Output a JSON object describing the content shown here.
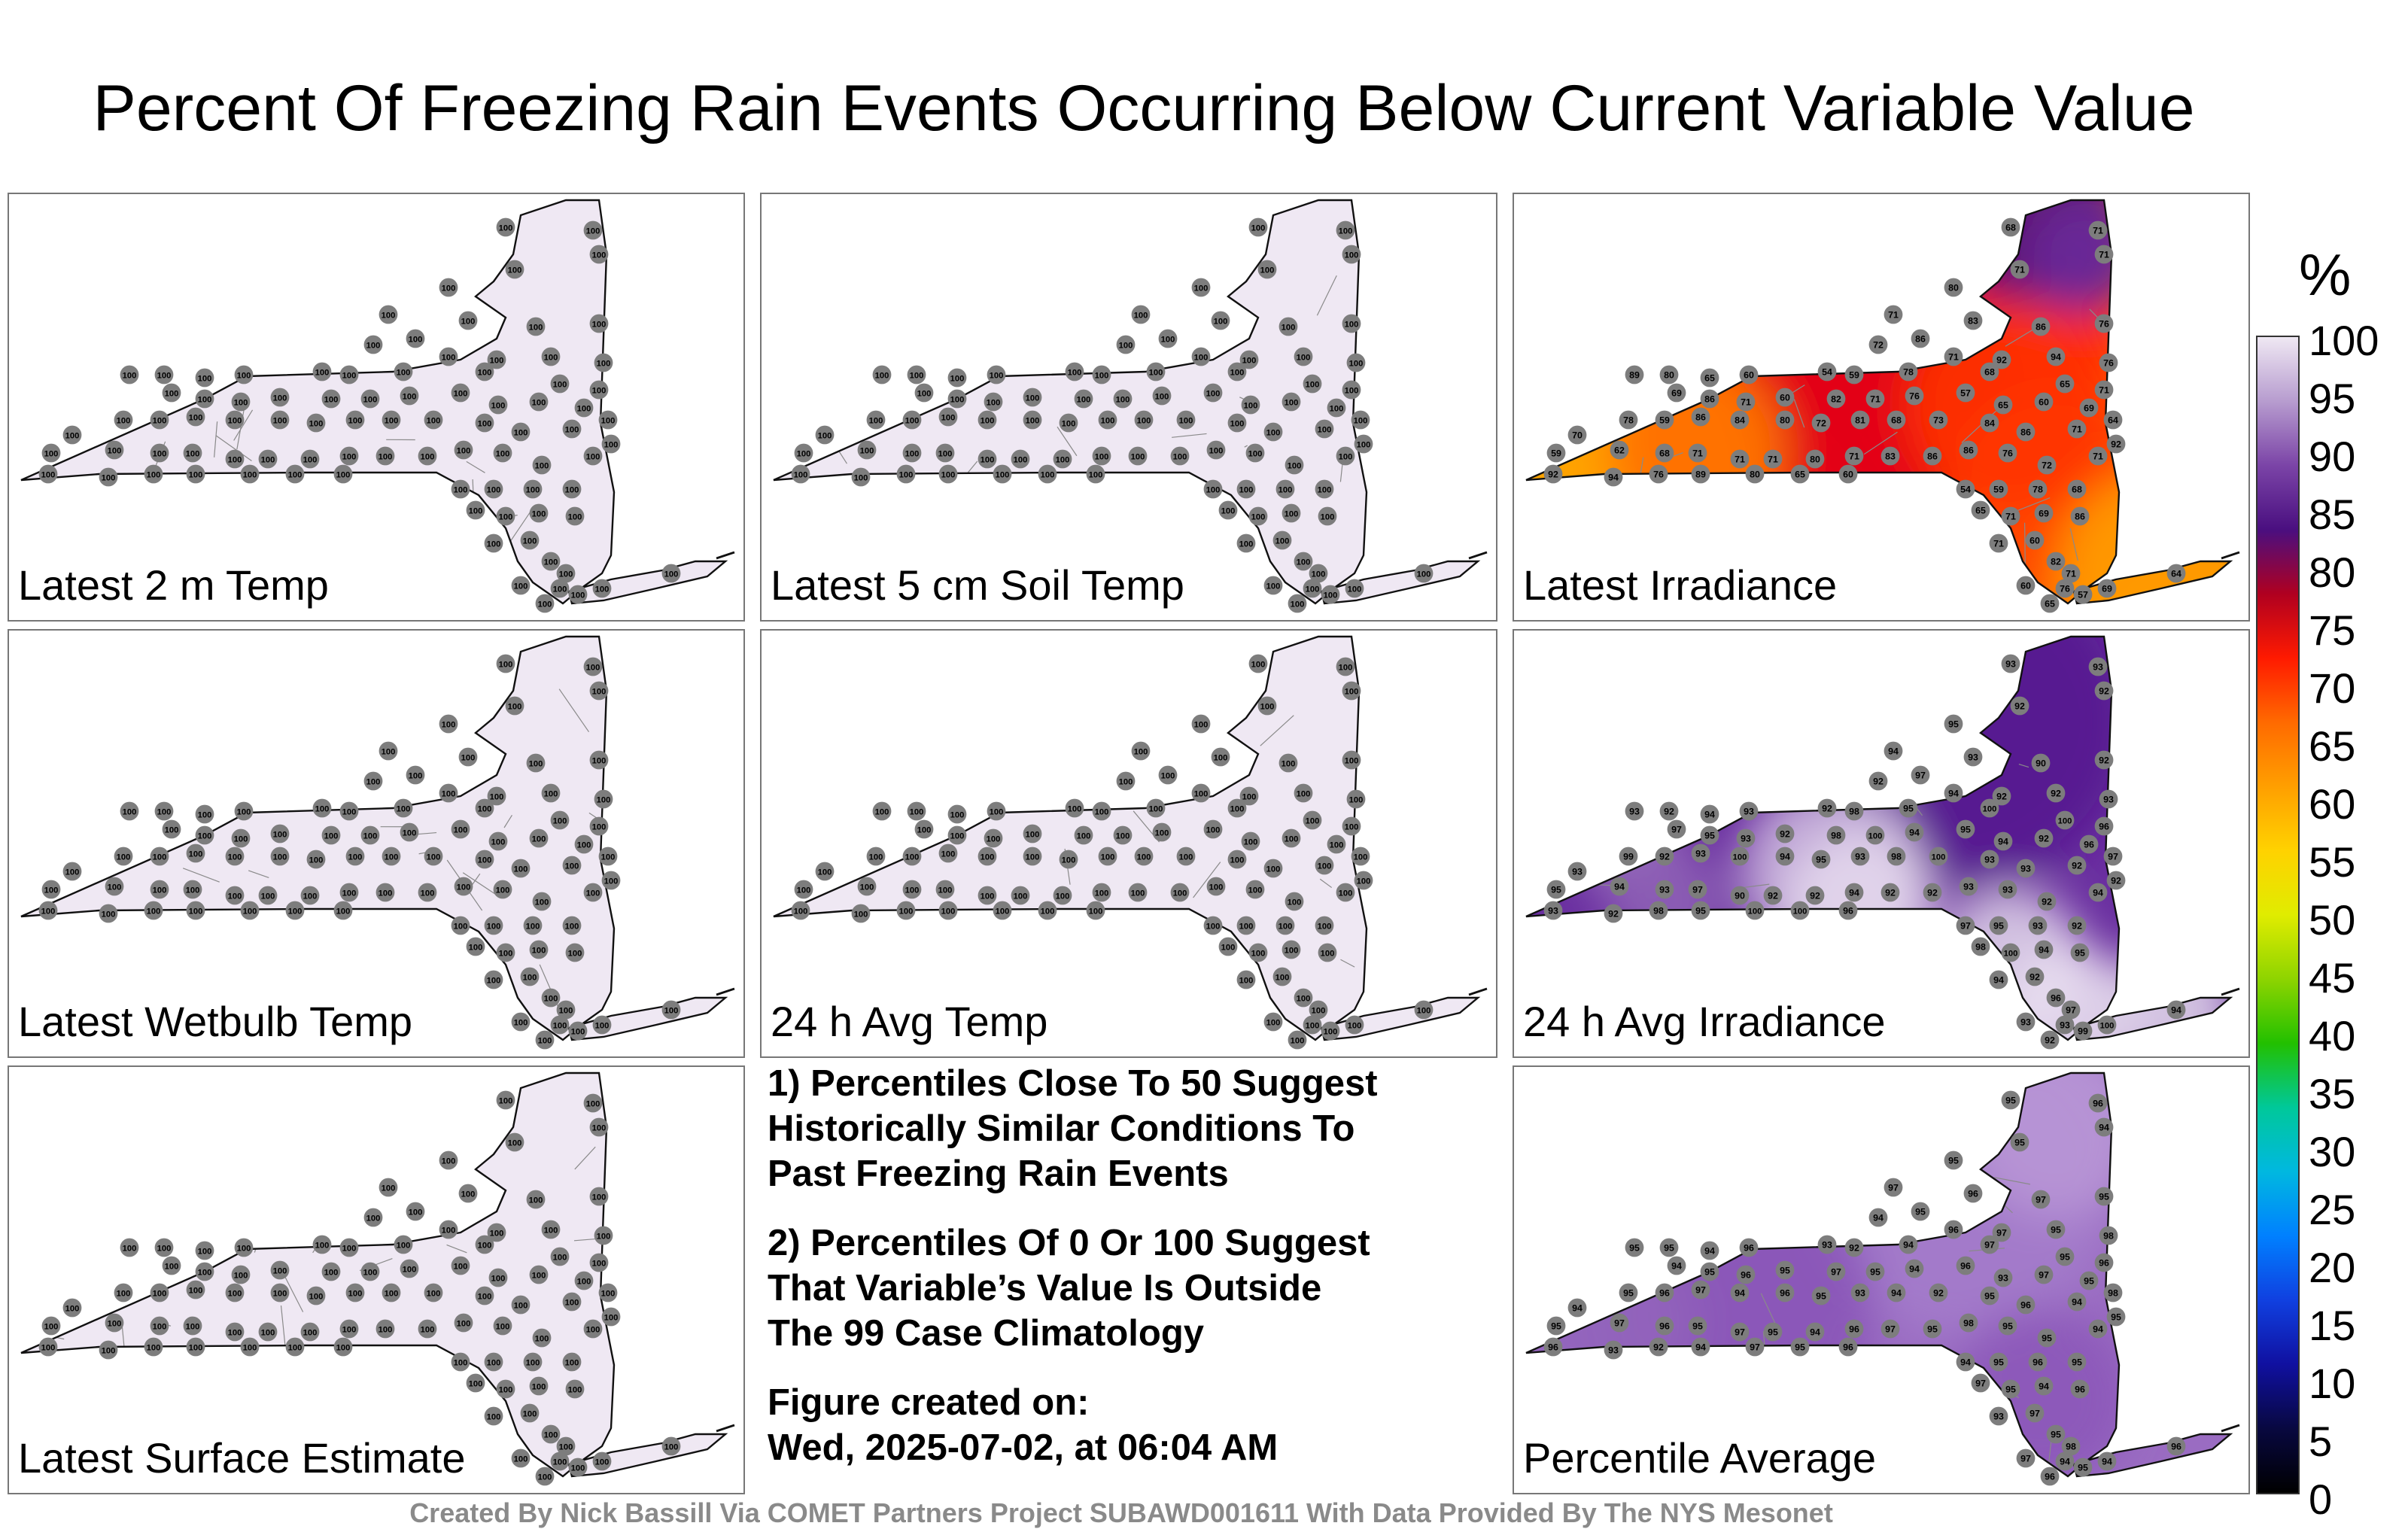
{
  "title": "Percent Of Freezing Rain Events Occurring Below Current Variable Value",
  "panels": [
    {
      "label": "Latest 2 m Temp",
      "fill": "uniform",
      "base_value": 100
    },
    {
      "label": "Latest 5 cm Soil Temp",
      "fill": "uniform",
      "base_value": 100
    },
    {
      "label": "Latest Irradiance",
      "fill": "irradiance",
      "values": [
        68,
        71,
        71,
        71,
        80,
        71,
        83,
        86,
        86,
        76,
        72,
        71,
        92,
        94,
        76,
        89,
        80,
        65,
        60,
        54,
        59,
        78,
        68,
        65,
        71,
        69,
        86,
        71,
        60,
        82,
        71,
        76,
        57,
        65,
        60,
        69,
        64,
        70,
        78,
        59,
        86,
        84,
        80,
        72,
        81,
        68,
        73,
        84,
        86,
        71,
        92,
        59,
        62
      ]
    },
    {
      "label": "Latest Wetbulb Temp",
      "fill": "uniform",
      "base_value": 100
    },
    {
      "label": "24 h Avg Temp",
      "fill": "uniform",
      "base_value": 100
    },
    {
      "label": "24 h Avg Irradiance",
      "fill": "purple_high",
      "values": [
        93,
        93,
        92,
        92,
        95,
        94,
        93,
        97,
        90,
        92,
        92,
        94,
        92,
        92,
        93,
        93,
        92,
        94,
        93,
        92,
        98,
        95,
        100,
        100,
        96,
        97,
        95,
        93,
        92,
        98,
        100,
        94,
        95,
        94,
        92,
        96,
        97,
        93,
        99,
        92,
        93,
        100,
        94,
        95,
        93,
        98,
        100
      ]
    },
    {
      "label": "Latest Surface Estimate",
      "fill": "uniform",
      "base_value": 100
    },
    {
      "label": "Percentile Average",
      "fill": "purple_mid",
      "values": [
        95,
        96,
        94,
        95,
        95,
        97,
        96,
        95,
        97,
        95,
        94,
        96,
        97,
        95,
        98,
        95,
        95,
        94,
        96,
        93,
        92,
        94,
        97,
        95,
        96,
        94,
        95,
        96,
        95,
        97,
        95,
        94,
        96,
        93,
        97,
        95,
        98,
        94,
        95,
        96,
        97,
        94,
        96,
        95,
        93,
        94,
        92
      ]
    }
  ],
  "notes": [
    "1) Percentiles Close To 50 Suggest\nHistorically Similar Conditions To\nPast Freezing Rain Events",
    "2) Percentiles Of 0 Or 100 Suggest\nThat Variable’s Value Is Outside\nThe 99 Case Climatology",
    "Figure created on:\nWed, 2025-07-02, at 06:04 AM"
  ],
  "credit": "Created By Nick Bassill Via COMET Partners Project SUBAWD001611 With Data Provided By The NYS Mesonet",
  "colorbar": {
    "unit": "%",
    "ticks": [
      "100",
      "95",
      "90",
      "85",
      "80",
      "75",
      "70",
      "65",
      "60",
      "55",
      "50",
      "45",
      "40",
      "35",
      "30",
      "25",
      "20",
      "15",
      "10",
      "5",
      "0"
    ],
    "colors": [
      "#efe8f3",
      "#b79ccf",
      "#7b44a7",
      "#4a0f80",
      "#b00020",
      "#ff1a00",
      "#ff6a00",
      "#ff9f00",
      "#ffd200",
      "#e0ec00",
      "#8ed400",
      "#22c000",
      "#00c89a",
      "#00b8e0",
      "#0080ff",
      "#1040e0",
      "#1010a0",
      "#080840",
      "#000000"
    ]
  }
}
